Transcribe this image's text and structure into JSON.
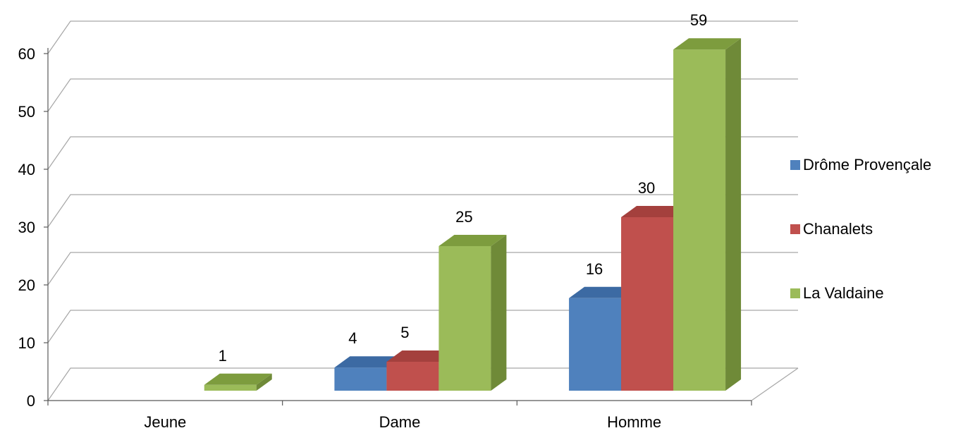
{
  "chart_data": {
    "type": "bar",
    "title": "",
    "xlabel": "",
    "ylabel": "",
    "categories": [
      "Jeune",
      "Dame",
      "Homme"
    ],
    "ylim": [
      0,
      60
    ],
    "yticks": [
      0,
      10,
      20,
      30,
      40,
      50,
      60
    ],
    "grid": true,
    "legend_position": "right",
    "series": [
      {
        "name": "Drôme Provençale",
        "values": [
          null,
          4,
          16
        ],
        "color": "#4f81bd",
        "side_color": "#385d8a",
        "top_color": "#3c6aa3"
      },
      {
        "name": "Chanalets",
        "values": [
          null,
          5,
          30
        ],
        "color": "#c0504d",
        "side_color": "#8c3a38",
        "top_color": "#a4403d"
      },
      {
        "name": "La Valdaine",
        "values": [
          1,
          25,
          59
        ],
        "color": "#9bbb59",
        "side_color": "#6f8a38",
        "top_color": "#7d9c3e"
      }
    ],
    "data_labels": [
      [
        null,
        "4",
        "16"
      ],
      [
        null,
        "5",
        "30"
      ],
      [
        "1",
        "25",
        "59"
      ]
    ]
  }
}
